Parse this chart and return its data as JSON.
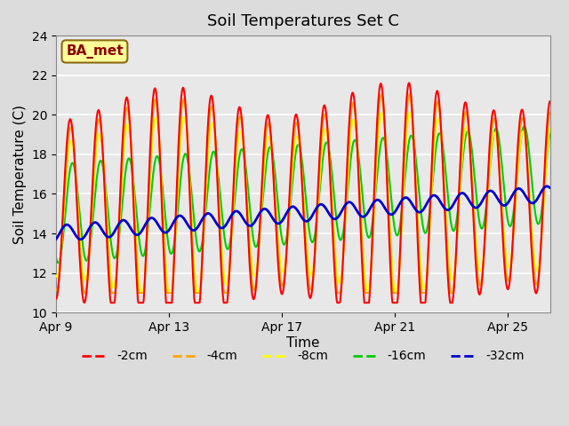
{
  "title": "Soil Temperatures Set C",
  "xlabel": "Time",
  "ylabel": "Soil Temperature (C)",
  "ylim": [
    10,
    24
  ],
  "yticks": [
    10,
    12,
    14,
    16,
    18,
    20,
    22,
    24
  ],
  "xlim_days": [
    0,
    17.5
  ],
  "xtick_positions": [
    0,
    4,
    8,
    12,
    16
  ],
  "xtick_labels": [
    "Apr 9",
    "Apr 13",
    "Apr 17",
    "Apr 21",
    "Apr 25"
  ],
  "annotation_text": "BA_met",
  "annotation_color": "#8B0000",
  "annotation_bg": "#FFFF99",
  "annotation_edge": "#8B6914",
  "line_colors": {
    "-2cm": "#FF0000",
    "-4cm": "#FFA500",
    "-8cm": "#FFFF00",
    "-16cm": "#00CC00",
    "-32cm": "#0000CC"
  },
  "line_widths": {
    "-2cm": 1.5,
    "-4cm": 1.5,
    "-8cm": 1.5,
    "-16cm": 1.5,
    "-32cm": 2.0
  },
  "fig_bg_color": "#DCDCDC",
  "plot_bg_color": "#E8E8E8",
  "grid_color": "#FFFFFF",
  "title_fontsize": 13,
  "axis_fontsize": 11,
  "tick_fontsize": 10,
  "legend_fontsize": 10
}
